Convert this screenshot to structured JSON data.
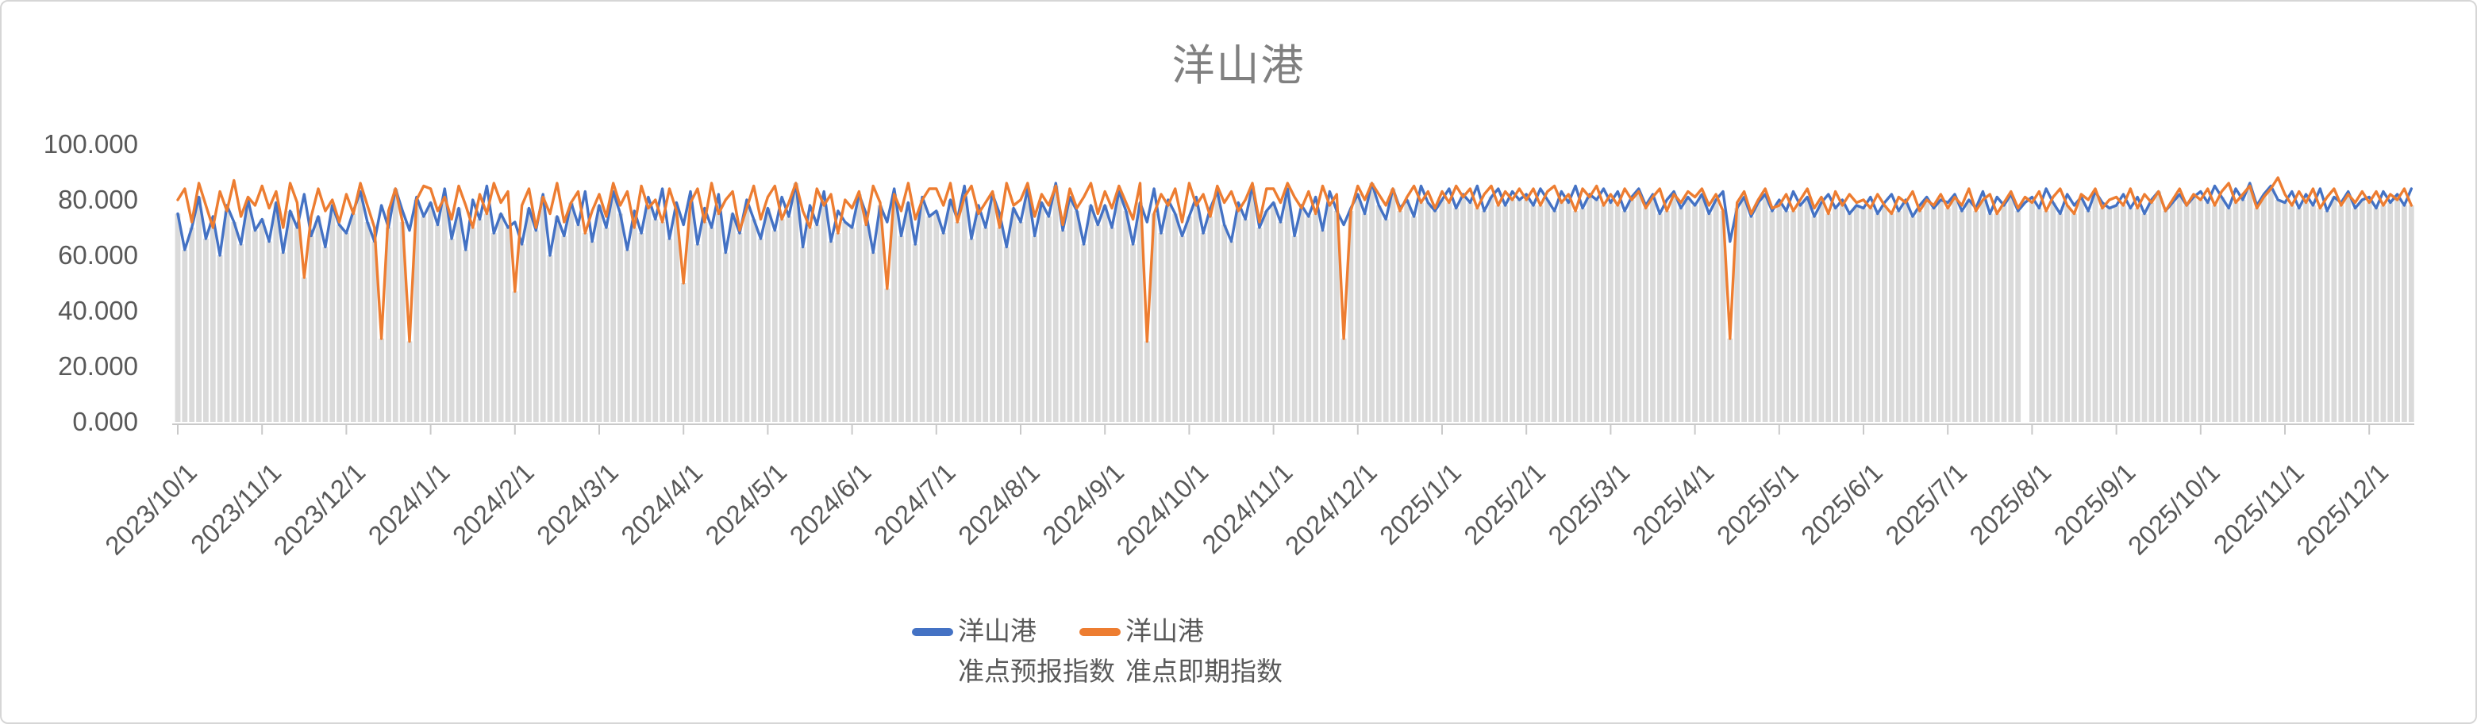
{
  "chart_data": {
    "type": "line",
    "title": "洋山港",
    "xlabel": "",
    "ylabel": "",
    "ylim": [
      0,
      100
    ],
    "grid": false,
    "legend_position": "bottom",
    "y_tick_values": [
      0,
      20,
      40,
      60,
      80,
      100
    ],
    "y_tick_labels": [
      "0.000",
      "20.000",
      "40.000",
      "60.000",
      "80.000",
      "100.000"
    ],
    "x_tick_labels": [
      "2023/10/1",
      "2023/11/1",
      "2023/12/1",
      "2024/1/1",
      "2024/2/1",
      "2024/3/1",
      "2024/4/1",
      "2024/5/1",
      "2024/6/1",
      "2024/7/1",
      "2024/8/1",
      "2024/9/1",
      "2024/10/1",
      "2024/11/1",
      "2024/12/1",
      "2025/1/1",
      "2025/2/1",
      "2025/3/1",
      "2025/4/1",
      "2025/5/1",
      "2025/6/1",
      "2025/7/1",
      "2025/8/1",
      "2025/9/1",
      "2025/10/1",
      "2025/11/1",
      "2025/12/1"
    ],
    "points_per_tick": 12,
    "colors": {
      "forecast": "#4472C4",
      "spot": "#ED7D31",
      "bars": "#DADADA",
      "axis": "#C9C9C9",
      "tick_label": "#595959",
      "title": "#808080"
    },
    "series": [
      {
        "name": "洋山港 准点预报指数",
        "legend_lines": [
          "洋山港",
          "准点预报指数"
        ],
        "color": "#4472C4",
        "values": [
          75,
          62,
          70,
          81,
          66,
          74,
          60,
          78,
          72,
          64,
          80,
          69,
          73,
          65,
          79,
          61,
          76,
          70,
          82,
          67,
          74,
          63,
          78,
          71,
          68,
          76,
          83,
          72,
          65,
          78,
          70,
          84,
          76,
          69,
          81,
          74,
          79,
          71,
          84,
          66,
          77,
          62,
          80,
          73,
          85,
          68,
          75,
          70,
          72,
          64,
          77,
          69,
          82,
          60,
          74,
          67,
          79,
          71,
          83,
          65,
          78,
          70,
          83,
          75,
          62,
          76,
          68,
          81,
          73,
          84,
          66,
          79,
          71,
          83,
          64,
          77,
          70,
          82,
          61,
          75,
          68,
          80,
          73,
          66,
          77,
          69,
          81,
          74,
          86,
          63,
          78,
          71,
          83,
          65,
          76,
          72,
          70,
          82,
          75,
          61,
          78,
          72,
          84,
          67,
          79,
          64,
          81,
          74,
          76,
          68,
          80,
          73,
          85,
          66,
          78,
          70,
          82,
          75,
          63,
          77,
          72,
          84,
          67,
          79,
          74,
          86,
          69,
          81,
          76,
          64,
          78,
          71,
          78,
          70,
          83,
          76,
          64,
          79,
          72,
          84,
          68,
          80,
          75,
          67,
          74,
          81,
          68,
          77,
          83,
          71,
          65,
          79,
          73,
          85,
          70,
          76,
          79,
          72,
          84,
          67,
          78,
          74,
          81,
          69,
          83,
          76,
          71,
          77,
          82,
          75,
          86,
          78,
          73,
          84,
          77,
          80,
          74,
          85,
          79,
          76,
          80,
          84,
          77,
          82,
          79,
          85,
          76,
          81,
          84,
          78,
          83,
          80,
          82,
          78,
          84,
          80,
          76,
          83,
          79,
          85,
          77,
          82,
          80,
          84,
          79,
          83,
          76,
          81,
          84,
          78,
          82,
          75,
          80,
          83,
          77,
          81,
          78,
          82,
          75,
          80,
          83,
          65,
          77,
          81,
          74,
          79,
          82,
          76,
          80,
          76,
          83,
          78,
          81,
          74,
          79,
          82,
          77,
          80,
          75,
          78,
          77,
          81,
          75,
          79,
          82,
          76,
          80,
          74,
          78,
          81,
          77,
          80,
          79,
          82,
          76,
          80,
          77,
          83,
          75,
          81,
          78,
          82,
          76,
          79,
          81,
          77,
          84,
          79,
          75,
          82,
          78,
          81,
          76,
          83,
          79,
          77,
          78,
          82,
          77,
          81,
          75,
          80,
          83,
          76,
          79,
          82,
          78,
          81,
          83,
          79,
          85,
          81,
          77,
          84,
          80,
          86,
          78,
          82,
          85,
          80,
          79,
          83,
          77,
          82,
          78,
          84,
          76,
          81,
          79,
          83,
          77,
          80,
          81,
          77,
          83,
          79,
          82,
          78,
          84
        ]
      },
      {
        "name": "洋山港 准点即期指数",
        "legend_lines": [
          "洋山港",
          "准点即期指数"
        ],
        "color": "#ED7D31",
        "values": [
          80,
          84,
          72,
          86,
          78,
          70,
          83,
          76,
          87,
          74,
          81,
          78,
          85,
          77,
          83,
          70,
          86,
          79,
          52,
          74,
          84,
          76,
          80,
          72,
          82,
          75,
          86,
          78,
          70,
          30,
          76,
          84,
          72,
          29,
          80,
          85,
          84,
          76,
          81,
          73,
          85,
          78,
          70,
          82,
          75,
          86,
          79,
          83,
          47,
          78,
          84,
          70,
          81,
          75,
          86,
          72,
          79,
          83,
          68,
          76,
          82,
          74,
          86,
          78,
          83,
          70,
          85,
          77,
          80,
          72,
          84,
          76,
          50,
          79,
          84,
          72,
          86,
          75,
          80,
          83,
          69,
          77,
          85,
          73,
          81,
          85,
          73,
          79,
          86,
          76,
          70,
          84,
          78,
          82,
          68,
          80,
          77,
          83,
          71,
          85,
          79,
          48,
          82,
          76,
          86,
          73,
          80,
          84,
          84,
          78,
          86,
          72,
          81,
          85,
          75,
          79,
          83,
          70,
          86,
          78,
          80,
          86,
          74,
          82,
          78,
          85,
          71,
          84,
          77,
          81,
          86,
          75,
          83,
          77,
          85,
          79,
          73,
          86,
          29,
          75,
          82,
          78,
          84,
          72,
          86,
          78,
          82,
          74,
          85,
          79,
          83,
          76,
          80,
          86,
          72,
          84,
          84,
          79,
          86,
          81,
          77,
          83,
          75,
          85,
          78,
          82,
          30,
          76,
          85,
          80,
          86,
          82,
          78,
          84,
          76,
          81,
          85,
          79,
          83,
          77,
          83,
          79,
          85,
          81,
          84,
          77,
          82,
          85,
          78,
          83,
          80,
          84,
          80,
          84,
          78,
          83,
          85,
          79,
          82,
          76,
          84,
          81,
          85,
          78,
          82,
          78,
          84,
          80,
          83,
          77,
          81,
          84,
          76,
          82,
          79,
          83,
          81,
          84,
          78,
          82,
          76,
          30,
          79,
          83,
          75,
          80,
          84,
          77,
          78,
          82,
          76,
          80,
          84,
          77,
          81,
          75,
          83,
          78,
          82,
          79,
          80,
          77,
          82,
          78,
          75,
          81,
          79,
          83,
          76,
          80,
          78,
          82,
          77,
          81,
          78,
          84,
          76,
          80,
          82,
          75,
          79,
          83,
          77,
          81,
          79,
          83,
          76,
          81,
          84,
          78,
          75,
          82,
          80,
          84,
          77,
          80,
          81,
          78,
          84,
          77,
          82,
          79,
          83,
          76,
          80,
          84,
          78,
          82,
          80,
          84,
          78,
          83,
          86,
          79,
          82,
          85,
          77,
          81,
          84,
          88,
          82,
          78,
          83,
          79,
          84,
          77,
          81,
          84,
          78,
          82,
          79,
          83,
          79,
          83,
          78,
          82,
          80,
          84,
          78
        ]
      }
    ],
    "background_bars": {
      "color": "#DADADA",
      "derive": "min_of_series",
      "gap_indices": [
        263
      ]
    }
  }
}
